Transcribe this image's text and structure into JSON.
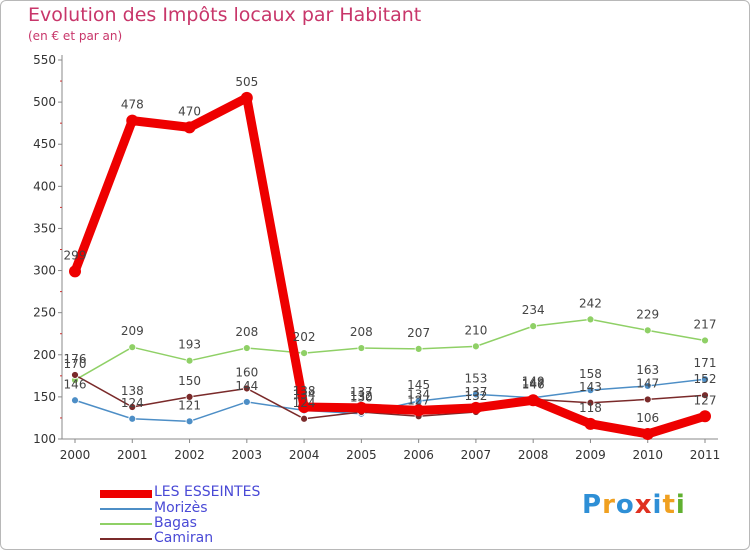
{
  "chart_data": {
    "type": "line",
    "title": "Evolution des Impôts locaux par Habitant",
    "subtitle": "(en € et par an)",
    "x": [
      "2000",
      "2001",
      "2002",
      "2003",
      "2004",
      "2005",
      "2006",
      "2007",
      "2008",
      "2009",
      "2010",
      "2011"
    ],
    "ylim": [
      100,
      550
    ],
    "yticks": [
      100,
      150,
      200,
      250,
      300,
      350,
      400,
      450,
      500,
      550
    ],
    "grid": false,
    "legend_position": "bottom-left",
    "series": [
      {
        "name": "LES ESSEINTES",
        "color": "#ee0000",
        "values": [
          299,
          478,
          470,
          505,
          138,
          137,
          134,
          137,
          146,
          118,
          106,
          127
        ]
      },
      {
        "name": "Morizès",
        "color": "#4d8ec6",
        "values": [
          146,
          124,
          121,
          144,
          134,
          130,
          145,
          153,
          149,
          158,
          163,
          171
        ]
      },
      {
        "name": "Bagas",
        "color": "#8fd066",
        "values": [
          170,
          209,
          193,
          208,
          202,
          208,
          207,
          210,
          234,
          242,
          229,
          217
        ]
      },
      {
        "name": "Camiran",
        "color": "#7a2a2a",
        "values": [
          176,
          138,
          150,
          160,
          124,
          132,
          127,
          132,
          147,
          143,
          147,
          152
        ]
      }
    ]
  },
  "logo": {
    "letters": [
      "P",
      "r",
      "o",
      "x",
      "i",
      "t",
      "i"
    ],
    "colors": [
      "#2e8fd6",
      "#f0a020",
      "#2e8fd6",
      "#e03020",
      "#2e8fd6",
      "#f0a020",
      "#60b030"
    ]
  }
}
